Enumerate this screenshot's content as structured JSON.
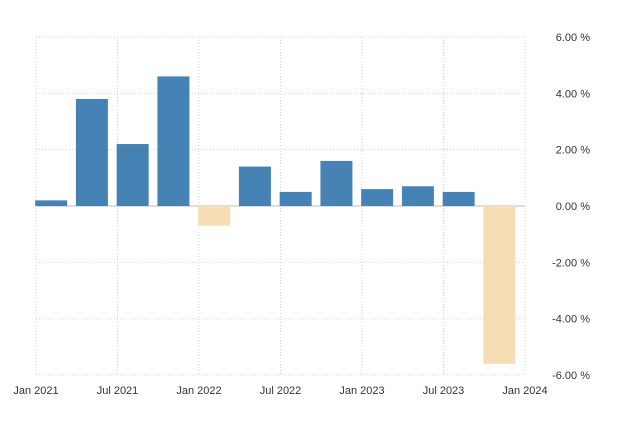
{
  "chart_data": {
    "type": "bar",
    "title": "",
    "xlabel": "",
    "ylabel": "",
    "x": [
      "2021-03",
      "2021-06",
      "2021-09",
      "2021-12",
      "2022-03",
      "2022-06",
      "2022-09",
      "2022-12",
      "2023-03",
      "2023-06",
      "2023-09",
      "2023-12"
    ],
    "values": [
      0.2,
      3.8,
      2.2,
      4.6,
      -0.7,
      1.4,
      0.5,
      1.6,
      0.6,
      0.7,
      0.5,
      -5.6
    ],
    "ylim": [
      -6,
      6
    ],
    "yticks": [
      6,
      4,
      2,
      0,
      -2,
      -4,
      -6
    ],
    "ytick_labels": [
      "6.00 %",
      "4.00 %",
      "2.00 %",
      "0.00 %",
      "-2.00 %",
      "-4.00 %",
      "-6.00 %"
    ],
    "xticks": [
      "2021-01",
      "2021-07",
      "2022-01",
      "2022-07",
      "2023-01",
      "2023-07",
      "2024-01"
    ],
    "xtick_labels": [
      "Jan 2021",
      "Jul 2021",
      "Jan 2022",
      "Jul 2022",
      "Jan 2023",
      "Jul 2023",
      "Jan 2024"
    ],
    "grid": true,
    "y_axis_side": "right",
    "colors": {
      "positive": "#4682b4",
      "negative": "#f5deb3",
      "grid": "#d4d4d4"
    }
  }
}
